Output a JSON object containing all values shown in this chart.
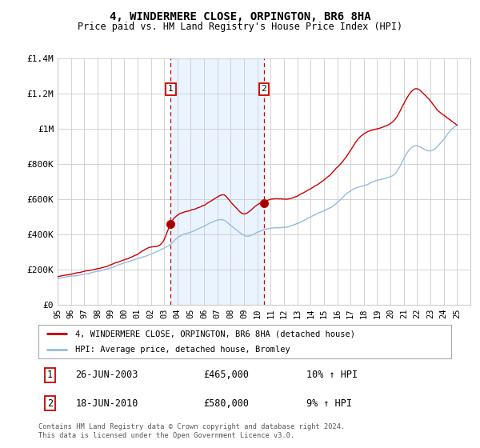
{
  "title": "4, WINDERMERE CLOSE, ORPINGTON, BR6 8HA",
  "subtitle": "Price paid vs. HM Land Registry's House Price Index (HPI)",
  "legend_line1": "4, WINDERMERE CLOSE, ORPINGTON, BR6 8HA (detached house)",
  "legend_line2": "HPI: Average price, detached house, Bromley",
  "footer": "Contains HM Land Registry data © Crown copyright and database right 2024.\nThis data is licensed under the Open Government Licence v3.0.",
  "annotation1": {
    "label": "1",
    "date": "26-JUN-2003",
    "price": "£465,000",
    "hpi": "10% ↑ HPI"
  },
  "annotation2": {
    "label": "2",
    "date": "18-JUN-2010",
    "price": "£580,000",
    "hpi": "9% ↑ HPI"
  },
  "property_color": "#cc0000",
  "hpi_color": "#99bbdd",
  "annotation_color": "#cc0000",
  "background_color": "#ffffff",
  "grid_color": "#cccccc",
  "annotation_box_color": "#cc0000",
  "shaded_region_color": "#ddeeff",
  "ylim": [
    0,
    1400000
  ],
  "yticks": [
    0,
    200000,
    400000,
    600000,
    800000,
    1000000,
    1200000,
    1400000
  ],
  "ytick_labels": [
    "£0",
    "£200K",
    "£400K",
    "£600K",
    "£800K",
    "£1M",
    "£1.2M",
    "£1.4M"
  ],
  "ann1_x": 2003.5,
  "ann1_y": 460000,
  "ann2_x": 2010.5,
  "ann2_y": 575000,
  "shade_start": 2003.5,
  "shade_end": 2010.5,
  "xmin": 1995,
  "xmax": 2026
}
